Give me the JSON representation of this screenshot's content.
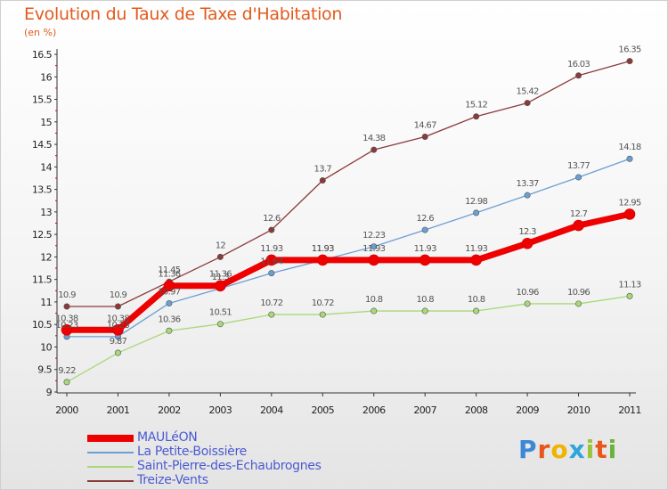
{
  "header": {
    "title": "Evolution du Taux de Taxe d'Habitation",
    "subtitle": "(en %)"
  },
  "logo": {
    "letters": [
      "P",
      "r",
      "o",
      "x",
      "i",
      "t",
      "i"
    ],
    "colors": [
      "#3d88d6",
      "#e8561a",
      "#f0b400",
      "#2fa6d9",
      "#9ac53a",
      "#e8561a",
      "#6bb23b"
    ]
  },
  "chart_data": {
    "type": "line",
    "title": "Evolution du Taux de Taxe d'Habitation",
    "ylabel": "(en %)",
    "xlabel": "",
    "x": [
      "2000",
      "2001",
      "2002",
      "2003",
      "2004",
      "2005",
      "2006",
      "2007",
      "2008",
      "2009",
      "2010",
      "2011"
    ],
    "ylim": [
      9,
      16.5
    ],
    "yticks": [
      "9",
      "9.5",
      "10",
      "10.5",
      "11",
      "11.5",
      "12",
      "12.5",
      "13",
      "13.5",
      "14",
      "14.5",
      "15",
      "15.5",
      "16",
      "16.5"
    ],
    "grid": false,
    "legend_position": "bottom-left",
    "series": [
      {
        "name": "MAULéON",
        "color": "#ee0000",
        "width": 7,
        "values": [
          10.38,
          10.38,
          11.36,
          11.36,
          11.93,
          11.93,
          11.93,
          11.93,
          11.93,
          12.3,
          12.7,
          12.95
        ],
        "labels": [
          "10.38",
          "10.38",
          "11.36",
          "11.36",
          "11.93",
          "11.93",
          "11.93",
          "11.93",
          "11.93",
          "12.3",
          "12.7",
          "12.95"
        ]
      },
      {
        "name": "La Petite-Boissière",
        "color": "#6b9fd4",
        "width": 1.3,
        "values": [
          10.23,
          10.23,
          10.97,
          11.3,
          11.64,
          11.93,
          12.23,
          12.6,
          12.98,
          13.37,
          13.77,
          14.18
        ],
        "labels": [
          "10.23",
          "10.23",
          "10.97",
          "11.3",
          "11.64",
          "11.93",
          "12.23",
          "12.6",
          "12.98",
          "13.37",
          "13.77",
          "14.18"
        ]
      },
      {
        "name": "Saint-Pierre-des-Echaubrognes",
        "color": "#a8d878",
        "width": 1.3,
        "values": [
          9.22,
          9.87,
          10.36,
          10.51,
          10.72,
          10.72,
          10.8,
          10.8,
          10.8,
          10.96,
          10.96,
          11.13
        ],
        "labels": [
          "9.22",
          "9.87",
          "10.36",
          "10.51",
          "10.72",
          "10.72",
          "10.8",
          "10.8",
          "10.8",
          "10.96",
          "10.96",
          "11.13"
        ]
      },
      {
        "name": "Treize-Vents",
        "color": "#8b3a3a",
        "width": 1.3,
        "values": [
          10.9,
          10.9,
          11.45,
          12,
          12.6,
          13.7,
          14.38,
          14.67,
          15.12,
          15.42,
          16.03,
          16.35
        ],
        "labels": [
          "10.9",
          "10.9",
          "11.45",
          "12",
          "12.6",
          "13.7",
          "14.38",
          "14.67",
          "15.12",
          "15.42",
          "16.03",
          "16.35"
        ]
      }
    ]
  }
}
